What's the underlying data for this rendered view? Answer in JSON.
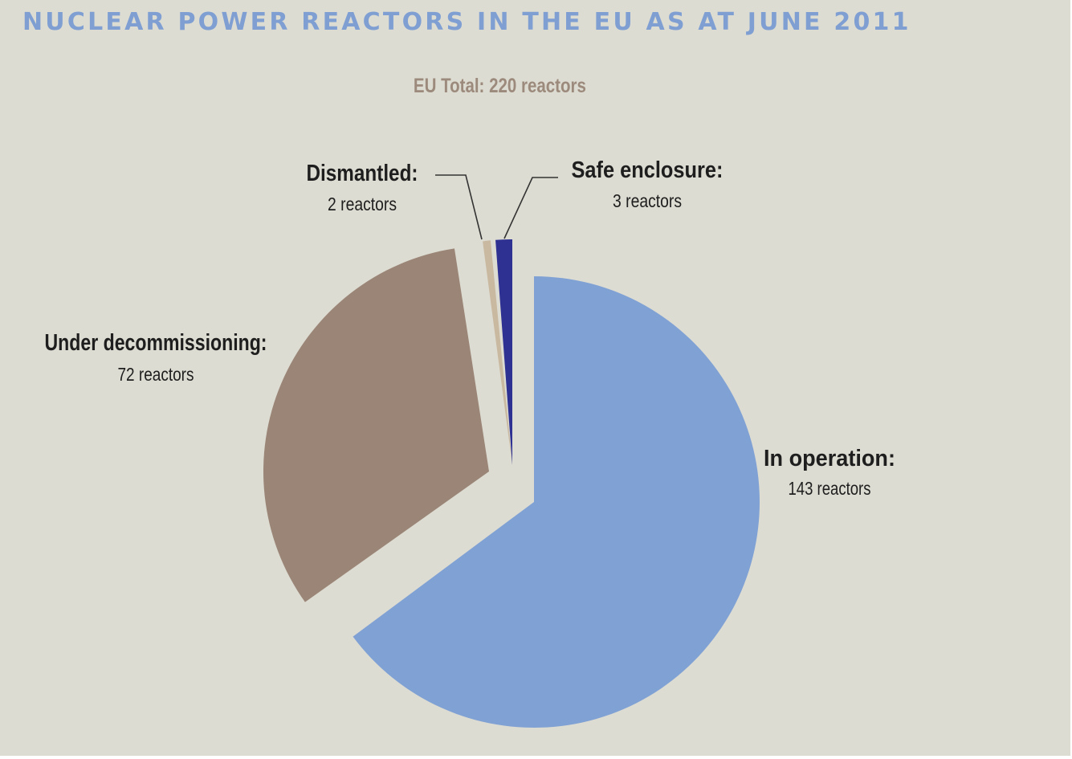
{
  "chart_data": {
    "type": "pie",
    "title": "NUCLEAR POWER REACTORS IN THE EU AS AT JUNE 2011",
    "subtitle": "EU Total: 220 reactors",
    "slices": [
      {
        "name": "In operation:",
        "value": 143,
        "value_label": "143 reactors",
        "color": "#80a1d4"
      },
      {
        "name": "Under decommissioning:",
        "value": 72,
        "value_label": "72 reactors",
        "color": "#9a8577"
      },
      {
        "name": "Dismantled:",
        "value": 2,
        "value_label": "2 reactors",
        "color": "#c9b9a1"
      },
      {
        "name": "Safe enclosure:",
        "value": 3,
        "value_label": "3 reactors",
        "color": "#2e3192"
      }
    ]
  },
  "colors": {
    "background": "#dddcd2",
    "title": "#7f9fd3",
    "subtitle": "#9c8a7c",
    "label_text": "#1e1e1e",
    "leader_line": "#333333"
  }
}
